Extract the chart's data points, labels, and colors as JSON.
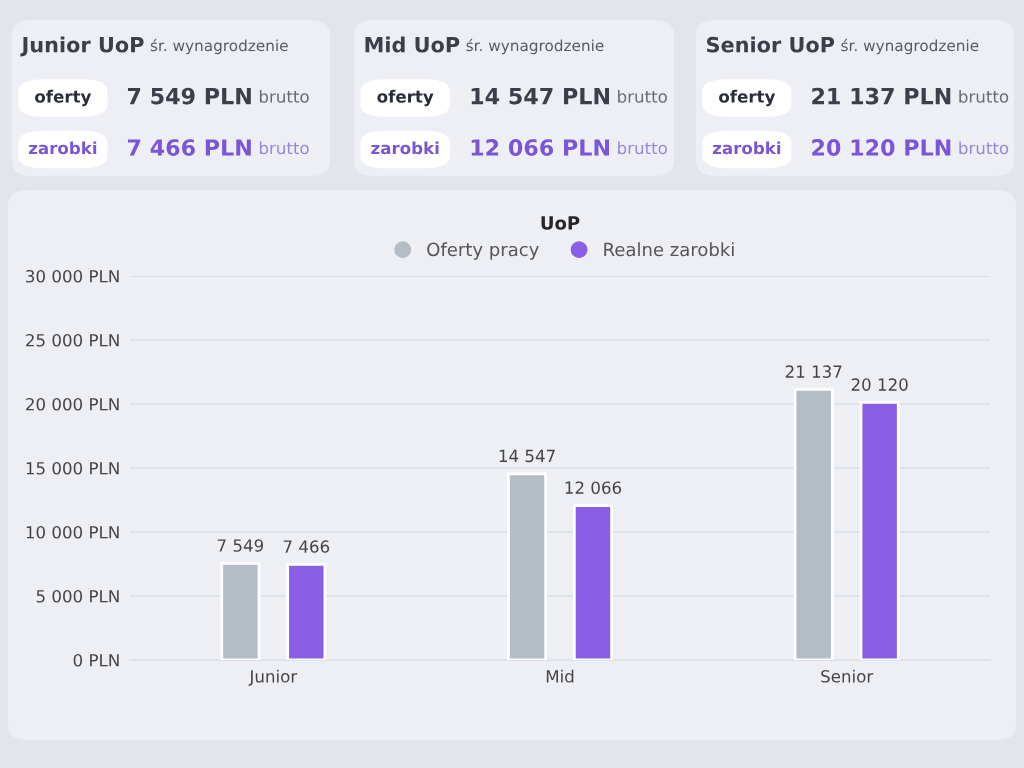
{
  "chart_data": [
    {
      "type": "other",
      "title": "Junior UoP",
      "subtitle": "śr. wynagrodzenie",
      "annotations": [
        "oferty",
        "7 549 PLN",
        "brutto",
        "zarobki",
        "7 466 PLN",
        "brutto"
      ]
    },
    {
      "type": "other",
      "title": "Mid UoP",
      "subtitle": "śr. wynagrodzenie",
      "annotations": [
        "oferty",
        "14 547 PLN",
        "brutto",
        "zarobki",
        "12 066 PLN",
        "brutto"
      ]
    },
    {
      "type": "other",
      "title": "Senior UoP",
      "subtitle": "śr. wynagrodzenie",
      "annotations": [
        "oferty",
        "21 137 PLN",
        "brutto",
        "zarobki",
        "20 120 PLN",
        "brutto"
      ]
    },
    {
      "type": "bar",
      "legend_title": "UoP",
      "legend": "top",
      "grid": "y",
      "categories": [
        "Junior",
        "Mid",
        "Senior"
      ],
      "series": [
        {
          "name": "Oferty pracy",
          "color": "#b4bcc6",
          "values": [
            7549,
            14547,
            21137
          ],
          "value_labels": [
            "7 549",
            "14 547",
            "21 137"
          ]
        },
        {
          "name": "Realne zarobki",
          "color": "#8b5ee6",
          "values": [
            7466,
            12066,
            20120
          ],
          "value_labels": [
            "7 466",
            "12 066",
            "20 120"
          ]
        }
      ],
      "ylim": [
        0,
        30000
      ],
      "yticks": [
        {
          "value": 0,
          "label": "0 PLN"
        },
        {
          "value": 5000,
          "label": "5 000 PLN"
        },
        {
          "value": 10000,
          "label": "10 000 PLN"
        },
        {
          "value": 15000,
          "label": "15 000 PLN"
        },
        {
          "value": 20000,
          "label": "20 000 PLN"
        },
        {
          "value": 25000,
          "label": "25 000 PLN"
        },
        {
          "value": 30000,
          "label": "30 000 PLN"
        }
      ]
    }
  ]
}
